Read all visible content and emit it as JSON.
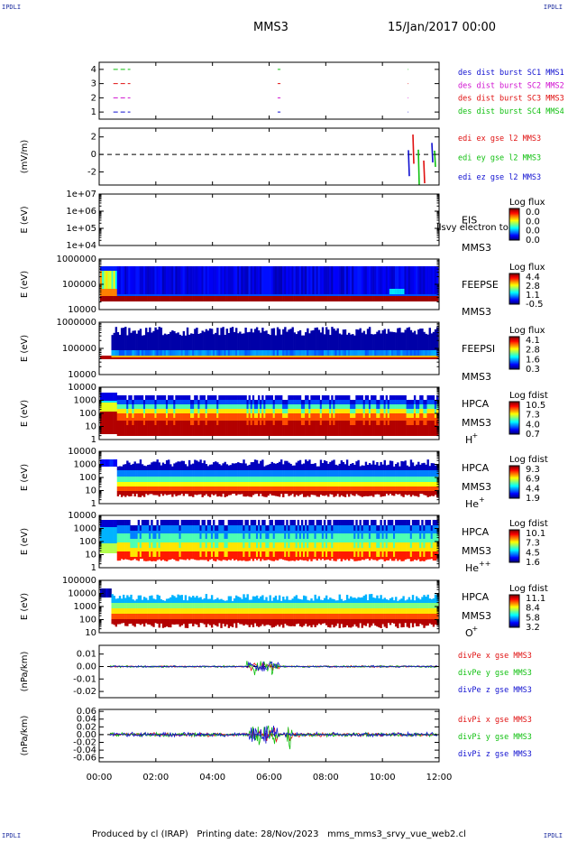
{
  "corners": {
    "tl": "IPDLI",
    "tr": "IPDLI",
    "bl": "IPDLI",
    "br": "IPDLI"
  },
  "header": {
    "mission": "MMS3",
    "date": "15/Jan/2017 00:00"
  },
  "footer": {
    "produced": "Produced by cl (IRAP)",
    "printing": "Printing date: 28/Nov/2023",
    "file": "mms_mms3_srvy_vue_web2.cl"
  },
  "colors": {
    "red": "#e01010",
    "green": "#10c010",
    "blue": "#1010d0",
    "magenta": "#d010d0"
  },
  "chart_data": [
    {
      "type": "line",
      "id": "dist-burst",
      "y_ticks": [
        "1",
        "2",
        "3",
        "4"
      ],
      "ylim": [
        0.5,
        4.5
      ],
      "legend": [
        {
          "text": "des dist burst SC1 MMS1",
          "color": "#1010d0"
        },
        {
          "text": "des dist burst SC2 MMS2",
          "color": "#d010d0"
        },
        {
          "text": "des dist burst SC3 MMS3",
          "color": "#e01010"
        },
        {
          "text": "des dist burst SC4 MMS4",
          "color": "#10c010"
        }
      ],
      "series": [
        {
          "level": 4,
          "color": "#10c010",
          "segments": [
            [
              0.5,
              1.1
            ],
            [
              6.3,
              6.4
            ]
          ]
        },
        {
          "level": 3,
          "color": "#e01010",
          "segments": [
            [
              0.5,
              1.1
            ],
            [
              6.3,
              6.4
            ]
          ]
        },
        {
          "level": 2,
          "color": "#d010d0",
          "segments": [
            [
              0.5,
              1.1
            ],
            [
              6.3,
              6.4
            ]
          ]
        },
        {
          "level": 1,
          "color": "#1010d0",
          "segments": [
            [
              0.5,
              1.1
            ],
            [
              6.3,
              6.4
            ]
          ]
        }
      ]
    },
    {
      "type": "line",
      "id": "edi-e",
      "ylabel": "(mV/m)",
      "y_ticks": [
        "2",
        "0",
        "-2"
      ],
      "ylim": [
        -3.5,
        3
      ],
      "legend": [
        {
          "text": "edi ex gse l2 MMS3",
          "color": "#e01010"
        },
        {
          "text": "edi ey gse l2 MMS3",
          "color": "#10c010"
        },
        {
          "text": "edi ez gse l2 MMS3",
          "color": "#1010d0"
        }
      ]
    },
    {
      "type": "heatmap",
      "id": "eis",
      "ylabel": "E (eV)",
      "y_ticks": [
        "1e+07",
        "1e+06",
        "1e+05",
        "1e+04"
      ],
      "instrument": "EIS",
      "overlay_text": "llsvy electron to",
      "spacecraft": "MMS3",
      "colorbar": {
        "title": "Log flux",
        "ticks": [
          "0.0",
          "0.0",
          "0.0",
          "0.0"
        ]
      }
    },
    {
      "type": "heatmap",
      "id": "feeps-e",
      "ylabel": "E (eV)",
      "y_ticks": [
        "1000000",
        "100000",
        "10000"
      ],
      "instrument": "FEEPSE",
      "spacecraft": "MMS3",
      "colorbar": {
        "title": "Log flux",
        "ticks": [
          "4.4",
          "2.8",
          "1.1",
          "-0.5"
        ]
      }
    },
    {
      "type": "heatmap",
      "id": "feeps-i",
      "ylabel": "E (eV)",
      "y_ticks": [
        "1000000",
        "100000",
        "10000"
      ],
      "instrument": "FEEPSI",
      "spacecraft": "MMS3",
      "colorbar": {
        "title": "Log flux",
        "ticks": [
          "4.1",
          "2.8",
          "1.6",
          "0.3"
        ]
      }
    },
    {
      "type": "heatmap",
      "id": "hpca-h",
      "ylabel": "E (eV)",
      "y_ticks": [
        "10000",
        "1000",
        "100",
        "10",
        "1"
      ],
      "instrument": "HPCA",
      "spacecraft": "MMS3",
      "species": "H",
      "charge": "+",
      "colorbar": {
        "title": "Log fdist",
        "ticks": [
          "10.5",
          "7.3",
          "4.0",
          "0.7"
        ]
      }
    },
    {
      "type": "heatmap",
      "id": "hpca-he",
      "ylabel": "E (eV)",
      "y_ticks": [
        "10000",
        "1000",
        "100",
        "10",
        "1"
      ],
      "instrument": "HPCA",
      "spacecraft": "MMS3",
      "species": "He",
      "charge": "+",
      "colorbar": {
        "title": "Log fdist",
        "ticks": [
          "9.3",
          "6.9",
          "4.4",
          "1.9"
        ]
      }
    },
    {
      "type": "heatmap",
      "id": "hpca-hepp",
      "ylabel": "E (eV)",
      "y_ticks": [
        "10000",
        "1000",
        "100",
        "10",
        "1"
      ],
      "instrument": "HPCA",
      "spacecraft": "MMS3",
      "species": "He",
      "charge": "++",
      "colorbar": {
        "title": "Log fdist",
        "ticks": [
          "10.1",
          "7.3",
          "4.5",
          "1.6"
        ]
      }
    },
    {
      "type": "heatmap",
      "id": "hpca-o",
      "ylabel": "E (eV)",
      "y_ticks": [
        "100000",
        "10000",
        "1000",
        "100",
        "10"
      ],
      "instrument": "HPCA",
      "spacecraft": "MMS3",
      "species": "O",
      "charge": "+",
      "colorbar": {
        "title": "Log fdist",
        "ticks": [
          "11.1",
          "8.4",
          "5.8",
          "3.2"
        ]
      }
    },
    {
      "type": "line",
      "id": "divpe",
      "ylabel": "(nPa/km)",
      "y_ticks": [
        "0.01",
        "0.00",
        "-0.01",
        "-0.02"
      ],
      "ylim": [
        -0.025,
        0.017
      ],
      "legend": [
        {
          "text": "divPe x gse MMS3",
          "color": "#e01010"
        },
        {
          "text": "divPe y gse MMS3",
          "color": "#10c010"
        },
        {
          "text": "divPe z gse MMS3",
          "color": "#1010d0"
        }
      ]
    },
    {
      "type": "line",
      "id": "divpi",
      "ylabel": "(nPa/km)",
      "y_ticks": [
        "0.06",
        "0.04",
        "0.02",
        "0.00",
        "-0.02",
        "-0.04",
        "-0.06"
      ],
      "ylim": [
        -0.07,
        0.065
      ],
      "legend": [
        {
          "text": "divPi x gse MMS3",
          "color": "#e01010"
        },
        {
          "text": "divPi y gse MMS3",
          "color": "#10c010"
        },
        {
          "text": "divPi z gse MMS3",
          "color": "#1010d0"
        }
      ]
    }
  ],
  "x_axis": {
    "ticks": [
      "00:00",
      "02:00",
      "04:00",
      "06:00",
      "08:00",
      "10:00",
      "12:00"
    ],
    "xlim": [
      0,
      12
    ]
  }
}
